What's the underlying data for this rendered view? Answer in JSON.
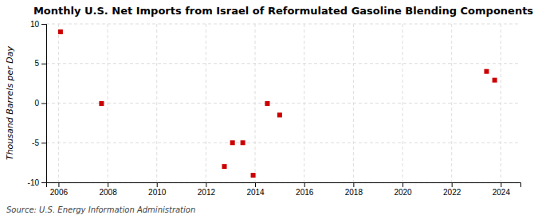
{
  "chart_data": {
    "type": "scatter",
    "title": "Monthly U.S. Net Imports from Israel of Reformulated Gasoline Blending Components",
    "ylabel": "Thousand Barrels per Day",
    "annotations": [
      "Source: U.S. Energy Information Administration"
    ],
    "x": [
      2006.08,
      2007.75,
      2012.75,
      2013.08,
      2013.5,
      2013.92,
      2014.5,
      2015.0,
      2023.42,
      2023.75
    ],
    "values": [
      9.0,
      -0.05,
      -8.0,
      -5.0,
      -5.0,
      -9.1,
      -0.05,
      -1.5,
      4.0,
      2.9
    ],
    "color": "#cc0000",
    "marker": "square",
    "xlim": [
      2005.5,
      2024.8
    ],
    "xticks": [
      2006,
      2008,
      2010,
      2012,
      2014,
      2016,
      2018,
      2020,
      2022,
      2024
    ],
    "ylim": [
      -10,
      10
    ],
    "yticks": [
      -10,
      -5,
      0,
      5,
      10
    ],
    "grid": true
  }
}
